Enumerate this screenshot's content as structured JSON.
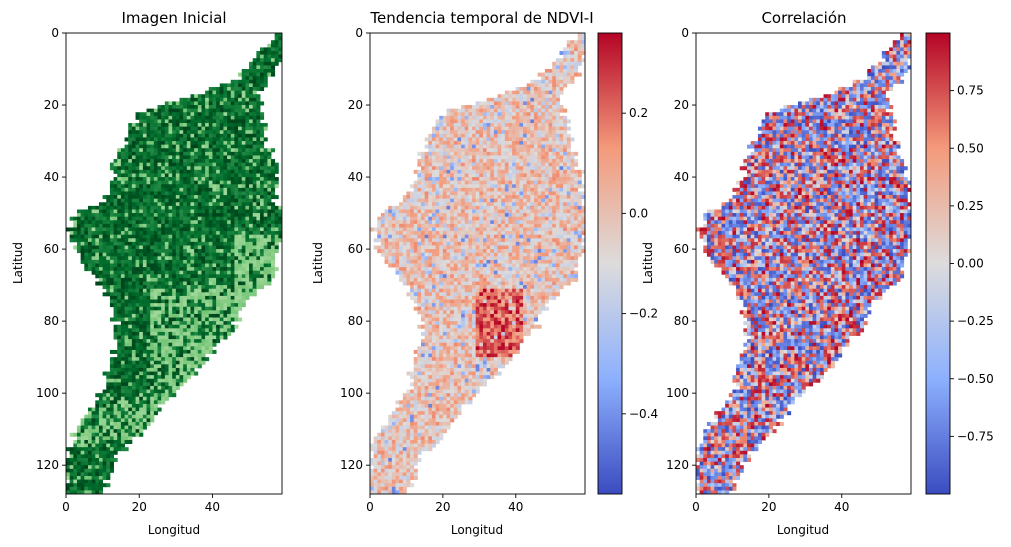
{
  "chart_data": [
    {
      "type": "heatmap",
      "title": "Imagen Inicial",
      "xlabel": "Longitud",
      "ylabel": "Latitud",
      "xlim": [
        0,
        59
      ],
      "ylim": [
        128,
        0
      ],
      "x_ticks": [
        "0",
        "20",
        "40"
      ],
      "y_ticks": [
        "0",
        "20",
        "40",
        "60",
        "80",
        "100",
        "120"
      ],
      "x_tick_values": [
        0,
        20,
        40
      ],
      "y_tick_values": [
        0,
        20,
        40,
        60,
        80,
        100,
        120
      ],
      "colormap": "Greens",
      "colors": [
        "#00441b",
        "#006d2c",
        "#238b45",
        "#74c476",
        "#a1d99b"
      ],
      "colorbar": false
    },
    {
      "type": "heatmap",
      "title": "Tendencia temporal de NDVI-I",
      "xlabel": "Longitud",
      "ylabel": "Latitud",
      "xlim": [
        0,
        59
      ],
      "ylim": [
        128,
        0
      ],
      "x_ticks": [
        "0",
        "20",
        "40"
      ],
      "y_ticks": [
        "0",
        "20",
        "40",
        "60",
        "80",
        "100",
        "120"
      ],
      "x_tick_values": [
        0,
        20,
        40
      ],
      "y_tick_values": [
        0,
        20,
        40,
        60,
        80,
        100,
        120
      ],
      "colormap": "coolwarm",
      "colors": [
        "#3b4cc0",
        "#8db0fe",
        "#dddcdc",
        "#f49a7b",
        "#b40426"
      ],
      "colorbar": true,
      "colorbar_range": [
        -0.56,
        0.36
      ],
      "colorbar_ticks": [
        "−0.4",
        "−0.2",
        "0.0",
        "0.2"
      ],
      "colorbar_tick_values": [
        -0.4,
        -0.2,
        0.0,
        0.2
      ]
    },
    {
      "type": "heatmap",
      "title": "Correlación",
      "xlabel": "Longitud",
      "ylabel": "Latitud",
      "xlim": [
        0,
        59
      ],
      "ylim": [
        128,
        0
      ],
      "x_ticks": [
        "0",
        "20",
        "40"
      ],
      "y_ticks": [
        "0",
        "20",
        "40",
        "60",
        "80",
        "100",
        "120"
      ],
      "x_tick_values": [
        0,
        20,
        40
      ],
      "y_tick_values": [
        0,
        20,
        40,
        60,
        80,
        100,
        120
      ],
      "colormap": "coolwarm",
      "colors": [
        "#3b4cc0",
        "#8db0fe",
        "#dddcdc",
        "#f49a7b",
        "#b40426"
      ],
      "colorbar": true,
      "colorbar_range": [
        -1.0,
        1.0
      ],
      "colorbar_ticks": [
        "−0.75",
        "−0.50",
        "−0.25",
        "0.00",
        "0.25",
        "0.50",
        "0.75"
      ],
      "colorbar_tick_values": [
        -0.75,
        -0.5,
        -0.25,
        0.0,
        0.25,
        0.5,
        0.75
      ]
    }
  ]
}
